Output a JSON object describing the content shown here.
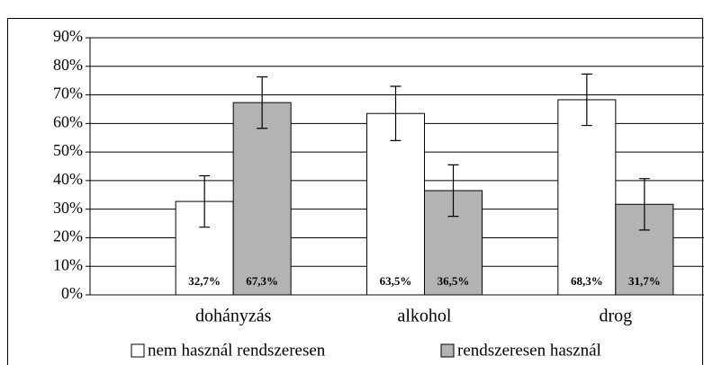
{
  "chart_data": {
    "type": "bar",
    "categories": [
      "dohányzás",
      "alkohol",
      "drog"
    ],
    "series": [
      {
        "name": "nem használ rendszeresen",
        "color": "#ffffff",
        "values": [
          32.7,
          63.5,
          68.3
        ],
        "value_labels": [
          "32,7%",
          "63,5%",
          "68,3%"
        ],
        "errors": [
          9,
          9.5,
          9
        ]
      },
      {
        "name": "rendszeresen használ",
        "color": "#b3b3b3",
        "values": [
          67.3,
          36.5,
          31.7
        ],
        "value_labels": [
          "67,3%",
          "36,5%",
          "31,7%"
        ],
        "errors": [
          9,
          9,
          9
        ]
      }
    ],
    "ylim": [
      0,
      90
    ],
    "yticks": [
      {
        "value": 0,
        "label": "0%"
      },
      {
        "value": 10,
        "label": "10%"
      },
      {
        "value": 20,
        "label": "20%"
      },
      {
        "value": 30,
        "label": "30%"
      },
      {
        "value": 40,
        "label": "40%"
      },
      {
        "value": 50,
        "label": "50%"
      },
      {
        "value": 60,
        "label": "60%"
      },
      {
        "value": 70,
        "label": "70%"
      },
      {
        "value": 80,
        "label": "80%"
      },
      {
        "value": 90,
        "label": "90%"
      }
    ],
    "grid": true,
    "legend": "bottom"
  }
}
